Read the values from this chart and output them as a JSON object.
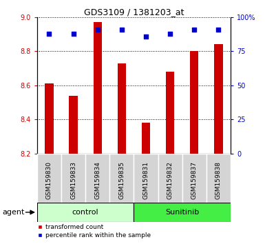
{
  "title": "GDS3109 / 1381203_at",
  "samples": [
    "GSM159830",
    "GSM159833",
    "GSM159834",
    "GSM159835",
    "GSM159831",
    "GSM159832",
    "GSM159837",
    "GSM159838"
  ],
  "bar_values": [
    8.61,
    8.54,
    8.97,
    8.73,
    8.38,
    8.68,
    8.8,
    8.84
  ],
  "percentile_values": [
    88,
    88,
    91,
    91,
    86,
    88,
    91,
    91
  ],
  "bar_color": "#cc0000",
  "dot_color": "#0000cc",
  "ylim_left": [
    8.2,
    9.0
  ],
  "ylim_right": [
    0,
    100
  ],
  "yticks_left": [
    8.2,
    8.4,
    8.6,
    8.8,
    9.0
  ],
  "yticks_right": [
    0,
    25,
    50,
    75,
    100
  ],
  "ytick_labels_right": [
    "0",
    "25",
    "50",
    "75",
    "100%"
  ],
  "groups": [
    {
      "label": "control",
      "indices": [
        0,
        1,
        2,
        3
      ],
      "color": "#ccffcc"
    },
    {
      "label": "Sunitinib",
      "indices": [
        4,
        5,
        6,
        7
      ],
      "color": "#44ee44"
    }
  ],
  "agent_label": "agent",
  "legend_items": [
    {
      "label": "transformed count",
      "color": "#cc0000"
    },
    {
      "label": "percentile rank within the sample",
      "color": "#0000cc"
    }
  ],
  "bar_width": 0.35,
  "tick_label_bg": "#cccccc",
  "control_color": "#ccffcc",
  "sunitinib_color": "#44ee44"
}
